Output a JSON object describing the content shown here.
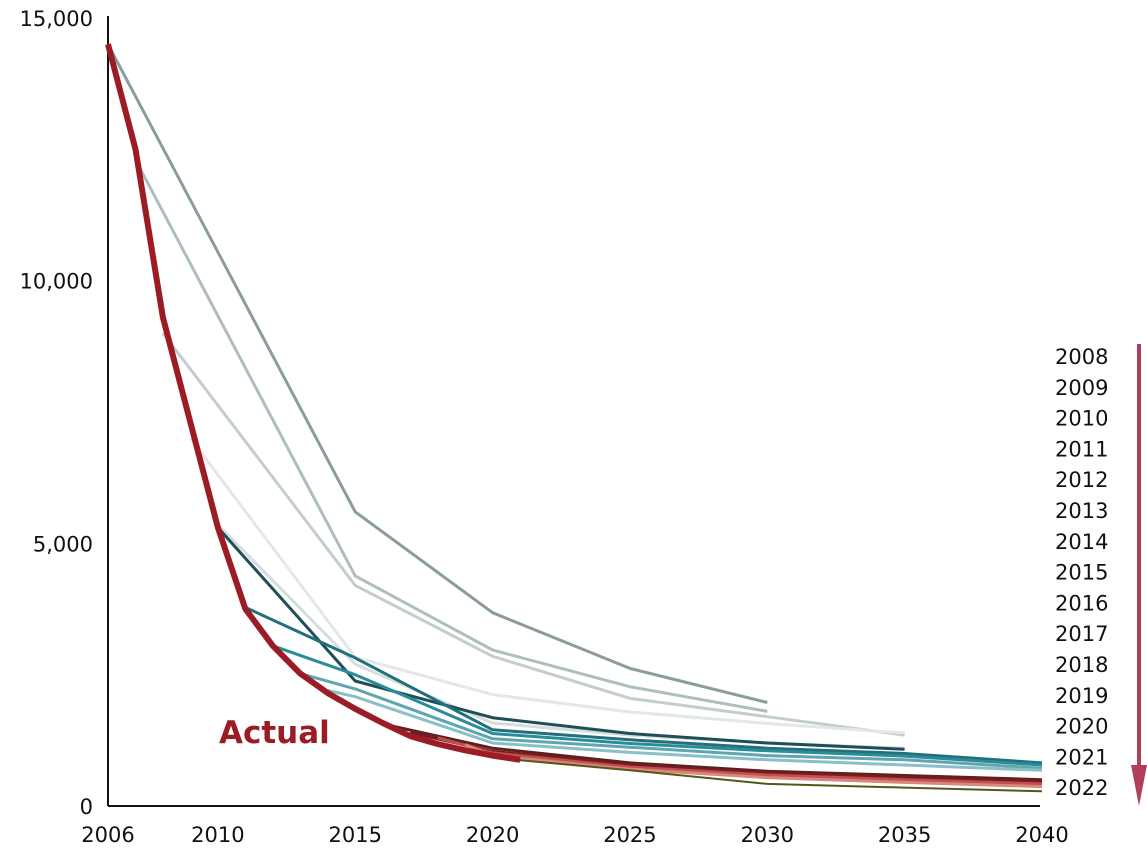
{
  "chart_data": {
    "type": "line",
    "title": "",
    "xlabel": "",
    "ylabel": "",
    "xlim": [
      2006,
      2040
    ],
    "ylim": [
      0,
      15000
    ],
    "x_ticks": [
      "2006",
      "2010",
      "2015",
      "2020",
      "2025",
      "2030",
      "2035",
      "2040"
    ],
    "y_ticks": [
      "0",
      "5,000",
      "10,000",
      "15,000"
    ],
    "grid": false,
    "legend_position": "right",
    "legend_entries": [
      "2008",
      "2009",
      "2010",
      "2011",
      "2012",
      "2013",
      "2014",
      "2015",
      "2016",
      "2017",
      "2018",
      "2019",
      "2020",
      "2021",
      "2022"
    ],
    "annotation": {
      "text": "Actual",
      "color": "#9b1c24"
    },
    "accent_colors": {
      "actual": "#9b1c24",
      "arrow": "#b0405a"
    },
    "series": [
      {
        "name": "2008",
        "color": "#8a9c9e",
        "width": 3,
        "points": [
          [
            2006,
            14500
          ],
          [
            2015,
            5600
          ],
          [
            2020,
            3680
          ],
          [
            2025,
            2620
          ],
          [
            2030,
            1970
          ]
        ]
      },
      {
        "name": "2009",
        "color": "#aebdbd",
        "width": 3,
        "points": [
          [
            2007,
            12300
          ],
          [
            2015,
            4380
          ],
          [
            2020,
            2970
          ],
          [
            2025,
            2270
          ],
          [
            2030,
            1800
          ]
        ]
      },
      {
        "name": "2010",
        "color": "#c3cdcd",
        "width": 3,
        "points": [
          [
            2008,
            9000
          ],
          [
            2015,
            4200
          ],
          [
            2020,
            2850
          ],
          [
            2025,
            2050
          ],
          [
            2030,
            1700
          ],
          [
            2035,
            1350
          ]
        ]
      },
      {
        "name": "2011",
        "color": "#e2e8e8",
        "width": 3,
        "points": [
          [
            2009,
            7000
          ],
          [
            2015,
            2830
          ],
          [
            2020,
            2120
          ],
          [
            2025,
            1790
          ],
          [
            2030,
            1570
          ],
          [
            2035,
            1390
          ]
        ]
      },
      {
        "name": "2012",
        "color": "#d5dddd",
        "width": 3,
        "points": [
          [
            2010,
            5350
          ],
          [
            2015,
            2700
          ],
          [
            2020,
            1580
          ],
          [
            2025,
            1350
          ],
          [
            2030,
            1200
          ],
          [
            2035,
            1100
          ]
        ]
      },
      {
        "name": "2013",
        "color": "#1e4f58",
        "width": 3,
        "points": [
          [
            2010,
            5300
          ],
          [
            2015,
            2380
          ],
          [
            2020,
            1680
          ],
          [
            2025,
            1380
          ],
          [
            2030,
            1200
          ],
          [
            2035,
            1080
          ]
        ]
      },
      {
        "name": "2014",
        "color": "#21707c",
        "width": 3,
        "points": [
          [
            2011,
            3780
          ],
          [
            2015,
            2820
          ],
          [
            2020,
            1450
          ],
          [
            2025,
            1260
          ],
          [
            2030,
            1100
          ],
          [
            2035,
            1000
          ],
          [
            2040,
            820
          ]
        ]
      },
      {
        "name": "2015",
        "color": "#2a8c98",
        "width": 3,
        "points": [
          [
            2012,
            3050
          ],
          [
            2015,
            2500
          ],
          [
            2020,
            1380
          ],
          [
            2025,
            1190
          ],
          [
            2030,
            1050
          ],
          [
            2035,
            950
          ],
          [
            2040,
            780
          ]
        ]
      },
      {
        "name": "2016",
        "color": "#5fa6b0",
        "width": 3,
        "points": [
          [
            2013,
            2520
          ],
          [
            2015,
            2230
          ],
          [
            2020,
            1280
          ],
          [
            2025,
            1120
          ],
          [
            2030,
            960
          ],
          [
            2035,
            880
          ],
          [
            2040,
            720
          ]
        ]
      },
      {
        "name": "2017",
        "color": "#89c0c8",
        "width": 3,
        "points": [
          [
            2014,
            2200
          ],
          [
            2015,
            2080
          ],
          [
            2020,
            1200
          ],
          [
            2025,
            1020
          ],
          [
            2030,
            880
          ],
          [
            2035,
            780
          ],
          [
            2040,
            680
          ]
        ]
      },
      {
        "name": "2018",
        "color": "#5e1f1f",
        "width": 3,
        "points": [
          [
            2016,
            1560
          ],
          [
            2020,
            1100
          ],
          [
            2025,
            820
          ],
          [
            2030,
            660
          ],
          [
            2035,
            580
          ],
          [
            2040,
            500
          ]
        ]
      },
      {
        "name": "2019",
        "color": "#7a1b22",
        "width": 3,
        "points": [
          [
            2017,
            1400
          ],
          [
            2020,
            1040
          ],
          [
            2025,
            780
          ],
          [
            2030,
            630
          ],
          [
            2035,
            540
          ],
          [
            2040,
            470
          ]
        ]
      },
      {
        "name": "2020",
        "color": "#c0504d",
        "width": 3,
        "points": [
          [
            2018,
            1300
          ],
          [
            2020,
            1010
          ],
          [
            2025,
            740
          ],
          [
            2030,
            590
          ],
          [
            2035,
            500
          ],
          [
            2040,
            420
          ]
        ]
      },
      {
        "name": "2021",
        "color": "#d9867b",
        "width": 3,
        "points": [
          [
            2019,
            1170
          ],
          [
            2020,
            960
          ],
          [
            2025,
            700
          ],
          [
            2030,
            540
          ],
          [
            2035,
            450
          ],
          [
            2040,
            370
          ]
        ]
      },
      {
        "name": "2022",
        "color": "#57561a",
        "width": 2,
        "points": [
          [
            2020,
            920
          ],
          [
            2025,
            680
          ],
          [
            2030,
            420
          ],
          [
            2035,
            350
          ],
          [
            2040,
            280
          ]
        ]
      },
      {
        "name": "Actual",
        "color": "#9b1c24",
        "width": 6,
        "points": [
          [
            2006,
            14500
          ],
          [
            2007,
            12500
          ],
          [
            2008,
            9300
          ],
          [
            2009,
            7300
          ],
          [
            2010,
            5300
          ],
          [
            2011,
            3750
          ],
          [
            2012,
            3050
          ],
          [
            2013,
            2520
          ],
          [
            2014,
            2150
          ],
          [
            2015,
            1850
          ],
          [
            2016,
            1580
          ],
          [
            2017,
            1330
          ],
          [
            2018,
            1180
          ],
          [
            2019,
            1060
          ],
          [
            2020,
            960
          ],
          [
            2021,
            880
          ]
        ]
      }
    ]
  }
}
